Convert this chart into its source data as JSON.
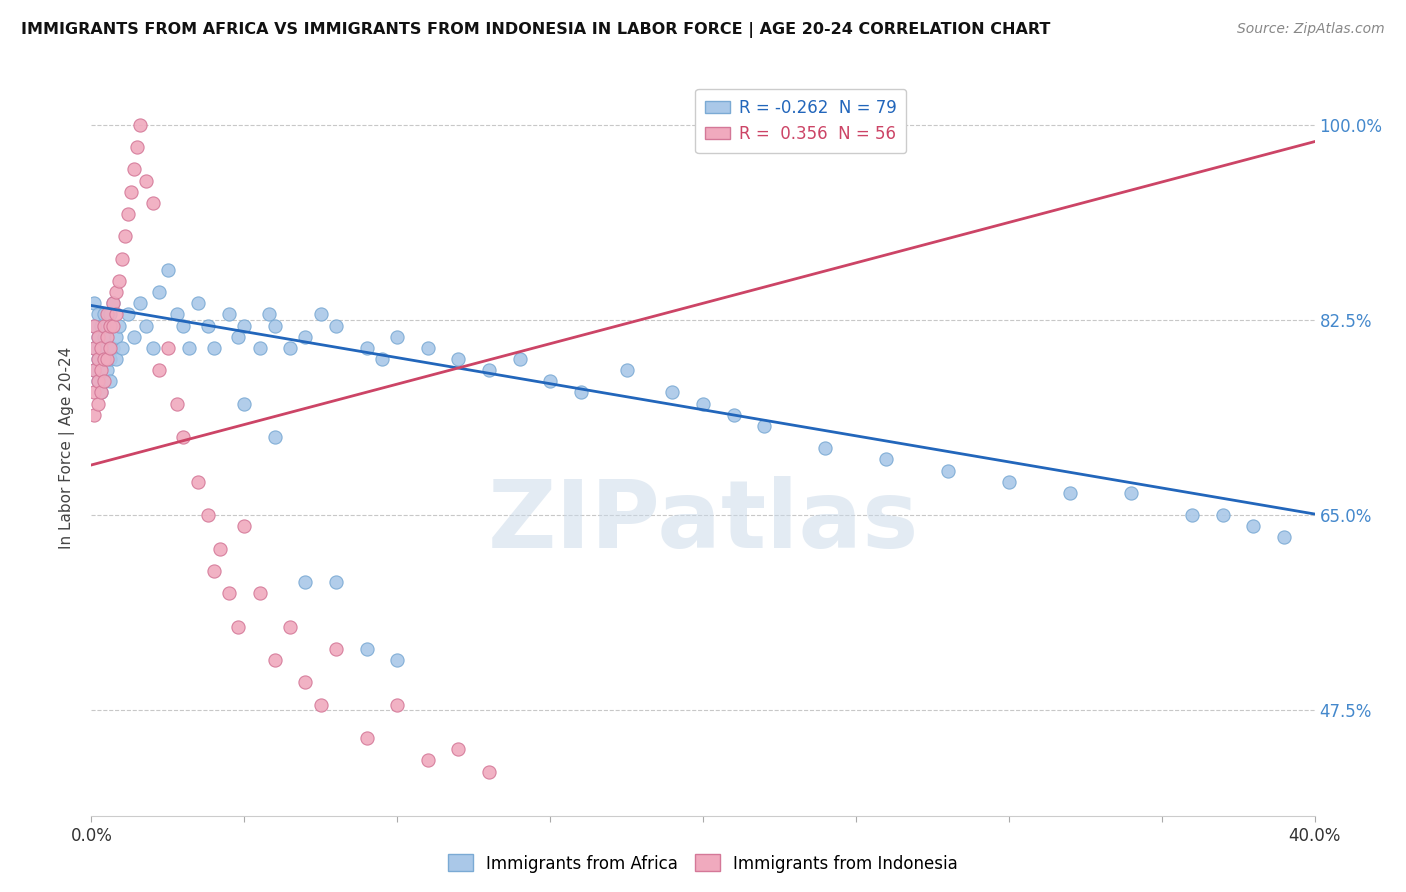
{
  "title": "IMMIGRANTS FROM AFRICA VS IMMIGRANTS FROM INDONESIA IN LABOR FORCE | AGE 20-24 CORRELATION CHART",
  "source": "Source: ZipAtlas.com",
  "ylabel": "In Labor Force | Age 20-24",
  "xlim": [
    0.0,
    0.4
  ],
  "ylim": [
    0.38,
    1.04
  ],
  "xtick_labels": [
    "0.0%",
    "",
    "",
    "",
    "",
    "",
    "",
    "",
    "40.0%"
  ],
  "xtick_vals": [
    0.0,
    0.05,
    0.1,
    0.15,
    0.2,
    0.25,
    0.3,
    0.35,
    0.4
  ],
  "ytick_labels": [
    "47.5%",
    "65.0%",
    "82.5%",
    "100.0%"
  ],
  "ytick_vals": [
    0.475,
    0.65,
    0.825,
    1.0
  ],
  "grid_color": "#c8c8c8",
  "background_color": "#ffffff",
  "africa_color": "#aac8e8",
  "africa_edge": "#7baad4",
  "indonesia_color": "#f0aabe",
  "indonesia_edge": "#d47898",
  "africa_R": -0.262,
  "africa_N": 79,
  "indonesia_R": 0.356,
  "indonesia_N": 56,
  "africa_line_color": "#2266bb",
  "indonesia_line_color": "#cc4466",
  "watermark_text": "ZIPatlas",
  "legend_africa_label": "R = -0.262  N = 79",
  "legend_indonesia_label": "R =  0.356  N = 56",
  "bottom_legend_africa": "Immigrants from Africa",
  "bottom_legend_indonesia": "Immigrants from Indonesia",
  "africa_x": [
    0.001,
    0.001,
    0.001,
    0.001,
    0.002,
    0.002,
    0.002,
    0.002,
    0.003,
    0.003,
    0.003,
    0.004,
    0.004,
    0.004,
    0.005,
    0.005,
    0.005,
    0.006,
    0.006,
    0.006,
    0.007,
    0.007,
    0.008,
    0.008,
    0.009,
    0.01,
    0.012,
    0.014,
    0.016,
    0.018,
    0.02,
    0.022,
    0.025,
    0.028,
    0.03,
    0.032,
    0.035,
    0.038,
    0.04,
    0.045,
    0.048,
    0.05,
    0.055,
    0.058,
    0.06,
    0.065,
    0.07,
    0.075,
    0.08,
    0.09,
    0.095,
    0.1,
    0.11,
    0.12,
    0.13,
    0.14,
    0.15,
    0.16,
    0.175,
    0.19,
    0.2,
    0.21,
    0.22,
    0.24,
    0.26,
    0.28,
    0.3,
    0.32,
    0.34,
    0.36,
    0.37,
    0.38,
    0.39,
    0.05,
    0.06,
    0.07,
    0.08,
    0.09,
    0.1
  ],
  "africa_y": [
    0.78,
    0.8,
    0.82,
    0.84,
    0.79,
    0.81,
    0.83,
    0.77,
    0.8,
    0.82,
    0.76,
    0.79,
    0.83,
    0.81,
    0.78,
    0.8,
    0.82,
    0.79,
    0.83,
    0.77,
    0.8,
    0.84,
    0.81,
    0.79,
    0.82,
    0.8,
    0.83,
    0.81,
    0.84,
    0.82,
    0.8,
    0.85,
    0.87,
    0.83,
    0.82,
    0.8,
    0.84,
    0.82,
    0.8,
    0.83,
    0.81,
    0.82,
    0.8,
    0.83,
    0.82,
    0.8,
    0.81,
    0.83,
    0.82,
    0.8,
    0.79,
    0.81,
    0.8,
    0.79,
    0.78,
    0.79,
    0.77,
    0.76,
    0.78,
    0.76,
    0.75,
    0.74,
    0.73,
    0.71,
    0.7,
    0.69,
    0.68,
    0.67,
    0.67,
    0.65,
    0.65,
    0.64,
    0.63,
    0.75,
    0.72,
    0.59,
    0.59,
    0.53,
    0.52
  ],
  "indonesia_x": [
    0.001,
    0.001,
    0.001,
    0.001,
    0.001,
    0.002,
    0.002,
    0.002,
    0.002,
    0.003,
    0.003,
    0.003,
    0.004,
    0.004,
    0.004,
    0.005,
    0.005,
    0.005,
    0.006,
    0.006,
    0.007,
    0.007,
    0.008,
    0.008,
    0.009,
    0.01,
    0.011,
    0.012,
    0.013,
    0.014,
    0.015,
    0.016,
    0.018,
    0.02,
    0.022,
    0.025,
    0.028,
    0.03,
    0.035,
    0.038,
    0.04,
    0.042,
    0.045,
    0.048,
    0.05,
    0.055,
    0.06,
    0.065,
    0.07,
    0.075,
    0.08,
    0.09,
    0.1,
    0.11,
    0.12,
    0.13
  ],
  "indonesia_y": [
    0.78,
    0.8,
    0.82,
    0.76,
    0.74,
    0.79,
    0.77,
    0.81,
    0.75,
    0.8,
    0.78,
    0.76,
    0.82,
    0.79,
    0.77,
    0.83,
    0.81,
    0.79,
    0.82,
    0.8,
    0.84,
    0.82,
    0.85,
    0.83,
    0.86,
    0.88,
    0.9,
    0.92,
    0.94,
    0.96,
    0.98,
    1.0,
    0.95,
    0.93,
    0.78,
    0.8,
    0.75,
    0.72,
    0.68,
    0.65,
    0.6,
    0.62,
    0.58,
    0.55,
    0.64,
    0.58,
    0.52,
    0.55,
    0.5,
    0.48,
    0.53,
    0.45,
    0.48,
    0.43,
    0.44,
    0.42
  ],
  "africa_trend": [
    0.838,
    0.651
  ],
  "indonesia_trend": [
    0.695,
    0.985
  ]
}
